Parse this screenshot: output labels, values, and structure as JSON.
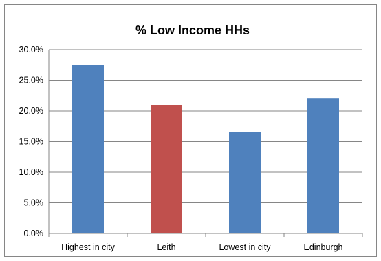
{
  "chart_data": {
    "type": "bar",
    "title": "% Low Income HHs",
    "categories": [
      "Highest in city",
      "Leith",
      "Lowest in city",
      "Edinburgh"
    ],
    "values": [
      27.5,
      20.9,
      16.6,
      22.0
    ],
    "bar_colors": [
      "#4F81BD",
      "#C0504D",
      "#4F81BD",
      "#4F81BD"
    ],
    "ylim": [
      0,
      30
    ],
    "yticks": [
      "0.0%",
      "5.0%",
      "10.0%",
      "15.0%",
      "20.0%",
      "25.0%",
      "30.0%"
    ],
    "ytick_values": [
      0,
      5,
      10,
      15,
      20,
      25,
      30
    ],
    "grid": true,
    "legend": "none"
  }
}
